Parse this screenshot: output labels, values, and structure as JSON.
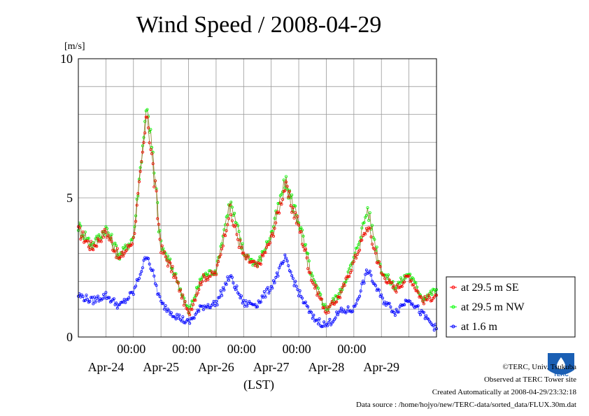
{
  "chart_data": {
    "type": "line",
    "title": "Wind Speed / 2008-04-29",
    "ylabel": "[m/s]",
    "xlabel": "(LST)",
    "ylim": [
      0,
      10
    ],
    "yticks": [
      0,
      5,
      10
    ],
    "x_start": "2008-04-23 12:00",
    "x_end": "2008-04-29 24:00",
    "x_tick_time_labels": [
      "00:00",
      "00:00",
      "00:00",
      "00:00",
      "00:00"
    ],
    "x_day_labels": [
      "Apr-24",
      "Apr-25",
      "Apr-26",
      "Apr-27",
      "Apr-28",
      "Apr-29"
    ],
    "grid": true,
    "legend_position": "right",
    "x_hours": [
      0,
      6,
      12,
      18,
      24,
      30,
      36,
      42,
      48,
      54,
      60,
      66,
      72,
      78,
      84,
      90,
      96,
      102,
      108,
      114,
      120,
      126,
      132,
      138,
      144,
      150,
      156
    ],
    "series": [
      {
        "name": "at 29.5 m SE",
        "color": "#ff0000",
        "values": [
          3.8,
          3.2,
          3.8,
          2.8,
          3.5,
          8.1,
          3.2,
          2.2,
          0.8,
          2.1,
          2.3,
          4.5,
          2.9,
          2.5,
          3.5,
          5.4,
          4.0,
          2.0,
          0.9,
          1.5,
          2.7,
          4.0,
          2.3,
          1.7,
          2.2,
          1.3,
          1.5
        ]
      },
      {
        "name": "at 29.5 m NW",
        "color": "#00ff00",
        "values": [
          4.0,
          3.3,
          3.9,
          2.9,
          3.6,
          8.5,
          3.3,
          2.3,
          0.9,
          2.2,
          2.4,
          4.9,
          3.0,
          2.6,
          3.7,
          5.6,
          4.2,
          2.1,
          1.0,
          1.6,
          2.8,
          4.6,
          2.4,
          1.8,
          2.3,
          1.4,
          1.7
        ]
      },
      {
        "name": "at 1.6 m",
        "color": "#0000ff",
        "values": [
          1.5,
          1.3,
          1.5,
          1.1,
          1.6,
          3.0,
          1.2,
          0.8,
          0.5,
          1.1,
          1.2,
          2.2,
          1.2,
          1.2,
          1.8,
          2.8,
          1.6,
          0.7,
          0.4,
          0.9,
          1.0,
          2.4,
          1.4,
          0.9,
          1.4,
          0.8,
          0.3
        ]
      }
    ]
  },
  "footer": {
    "copyright": "©TERC, Univ. Tsukuba",
    "site": "Observed at TERC Tower site",
    "created": "Created Automatically at 2008-04-29/23:32:18",
    "source": "Data source : /home/hojyo/new/TERC-data/sorted_data/FLUX.30m.dat"
  },
  "logo": {
    "text": "TERC",
    "color": "#1a5fb4"
  }
}
